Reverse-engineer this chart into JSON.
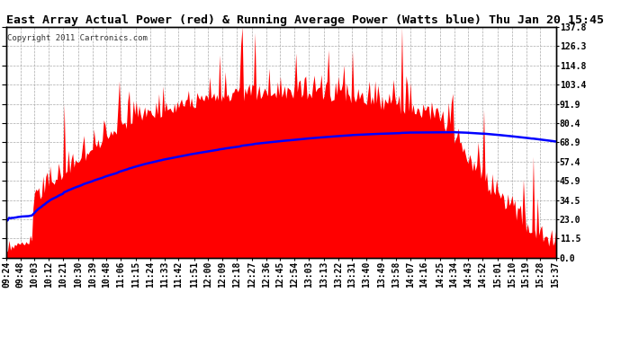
{
  "title": "East Array Actual Power (red) & Running Average Power (Watts blue) Thu Jan 20 15:45",
  "copyright": "Copyright 2011 Cartronics.com",
  "yticks": [
    0.0,
    11.5,
    23.0,
    34.5,
    45.9,
    57.4,
    68.9,
    80.4,
    91.9,
    103.4,
    114.8,
    126.3,
    137.8
  ],
  "ylim": [
    0,
    137.8
  ],
  "bg_color": "#ffffff",
  "grid_color": "#aaaaaa",
  "bar_color": "#ff0000",
  "line_color": "#0000ff",
  "x_labels": [
    "09:24",
    "09:48",
    "10:03",
    "10:12",
    "10:21",
    "10:30",
    "10:39",
    "10:48",
    "11:06",
    "11:15",
    "11:24",
    "11:33",
    "11:42",
    "11:51",
    "12:00",
    "12:09",
    "12:18",
    "12:27",
    "12:36",
    "12:45",
    "12:54",
    "13:03",
    "13:13",
    "13:22",
    "13:31",
    "13:40",
    "13:49",
    "13:58",
    "14:07",
    "14:16",
    "14:25",
    "14:34",
    "14:43",
    "14:52",
    "15:01",
    "15:10",
    "15:19",
    "15:28",
    "15:37"
  ],
  "title_fontsize": 9.5,
  "tick_fontsize": 7.0,
  "copyright_fontsize": 6.5
}
